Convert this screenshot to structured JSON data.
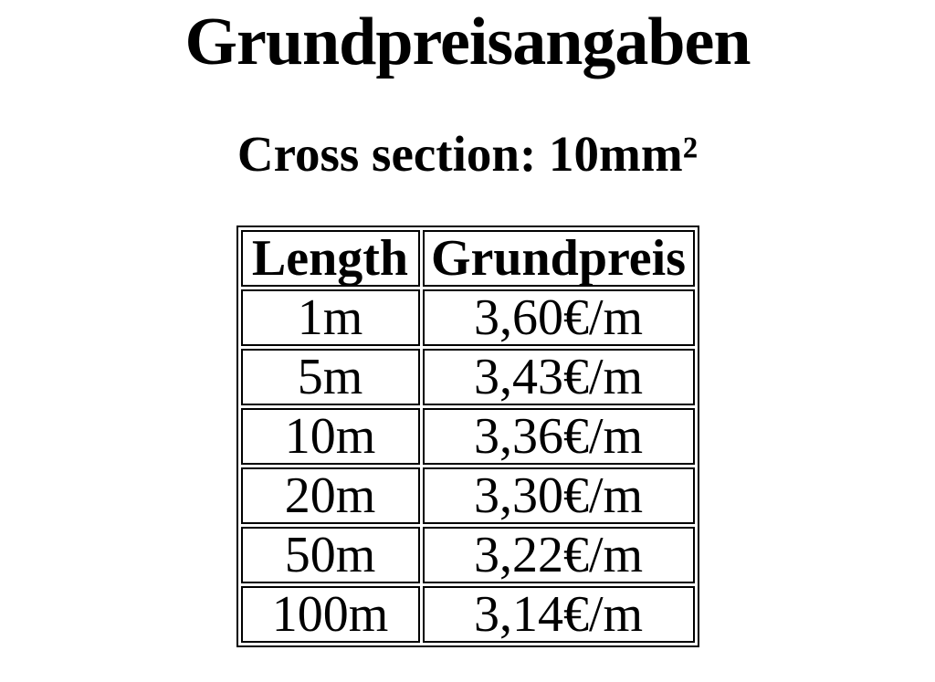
{
  "page": {
    "title": "Grundpreisangaben",
    "subtitle": "Cross section: 10mm²"
  },
  "table": {
    "columns": [
      "Length",
      "Grundpreis"
    ],
    "rows": [
      {
        "length": "1m",
        "grundpreis": "3,60€/m"
      },
      {
        "length": "5m",
        "grundpreis": "3,43€/m"
      },
      {
        "length": "10m",
        "grundpreis": "3,36€/m"
      },
      {
        "length": "20m",
        "grundpreis": "3,30€/m"
      },
      {
        "length": "50m",
        "grundpreis": "3,22€/m"
      },
      {
        "length": "100m",
        "grundpreis": "3,14€/m"
      }
    ]
  },
  "colors": {
    "background": "#ffffff",
    "text": "#000000",
    "border": "#000000"
  }
}
